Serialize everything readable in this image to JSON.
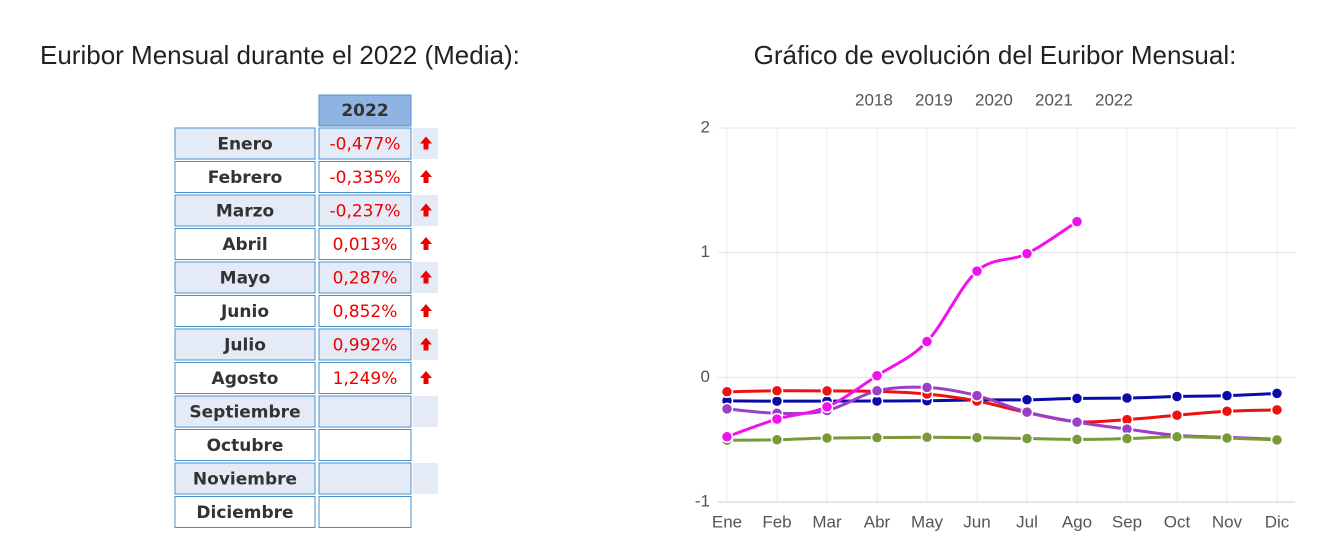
{
  "table": {
    "title": "Euribor Mensual durante el 2022 (Media):",
    "header": "2022",
    "rows": [
      {
        "month": "Enero",
        "value": "-0,477%"
      },
      {
        "month": "Febrero",
        "value": "-0,335%"
      },
      {
        "month": "Marzo",
        "value": "-0,237%"
      },
      {
        "month": "Abril",
        "value": "0,013%"
      },
      {
        "month": "Mayo",
        "value": "0,287%"
      },
      {
        "month": "Junio",
        "value": "0,852%"
      },
      {
        "month": "Julio",
        "value": "0,992%"
      },
      {
        "month": "Agosto",
        "value": "1,249%"
      },
      {
        "month": "Septiembre"
      },
      {
        "month": "Octubre"
      },
      {
        "month": "Noviembre"
      },
      {
        "month": "Diciembre"
      }
    ]
  },
  "chart_data": {
    "type": "line",
    "title": "Gráfico de evolución del Euribor Mensual:",
    "categories": [
      "Ene",
      "Feb",
      "Mar",
      "Abr",
      "May",
      "Jun",
      "Jul",
      "Ago",
      "Sep",
      "Oct",
      "Nov",
      "Dic"
    ],
    "series": [
      {
        "name": "2018",
        "color": "#0a0aa8",
        "values": [
          -0.189,
          -0.191,
          -0.191,
          -0.19,
          -0.188,
          -0.181,
          -0.18,
          -0.169,
          -0.166,
          -0.154,
          -0.147,
          -0.129
        ]
      },
      {
        "name": "2019",
        "color": "#ee1111",
        "values": [
          -0.116,
          -0.108,
          -0.109,
          -0.112,
          -0.134,
          -0.19,
          -0.283,
          -0.356,
          -0.339,
          -0.304,
          -0.272,
          -0.261
        ]
      },
      {
        "name": "2020",
        "color": "#9b3fc9",
        "values": [
          -0.253,
          -0.288,
          -0.266,
          -0.108,
          -0.081,
          -0.147,
          -0.279,
          -0.359,
          -0.415,
          -0.466,
          -0.481,
          -0.497
        ]
      },
      {
        "name": "2021",
        "color": "#7a9a3a",
        "values": [
          -0.505,
          -0.501,
          -0.487,
          -0.484,
          -0.481,
          -0.484,
          -0.491,
          -0.498,
          -0.492,
          -0.477,
          -0.487,
          -0.502
        ]
      },
      {
        "name": "2022",
        "color": "#f011ee",
        "values": [
          -0.477,
          -0.335,
          -0.237,
          0.013,
          0.287,
          0.852,
          0.992,
          1.249,
          null,
          null,
          null,
          null
        ]
      }
    ],
    "ylim": [
      -1,
      2
    ],
    "yticks": [
      -1,
      0,
      1,
      2
    ],
    "grid": true
  }
}
